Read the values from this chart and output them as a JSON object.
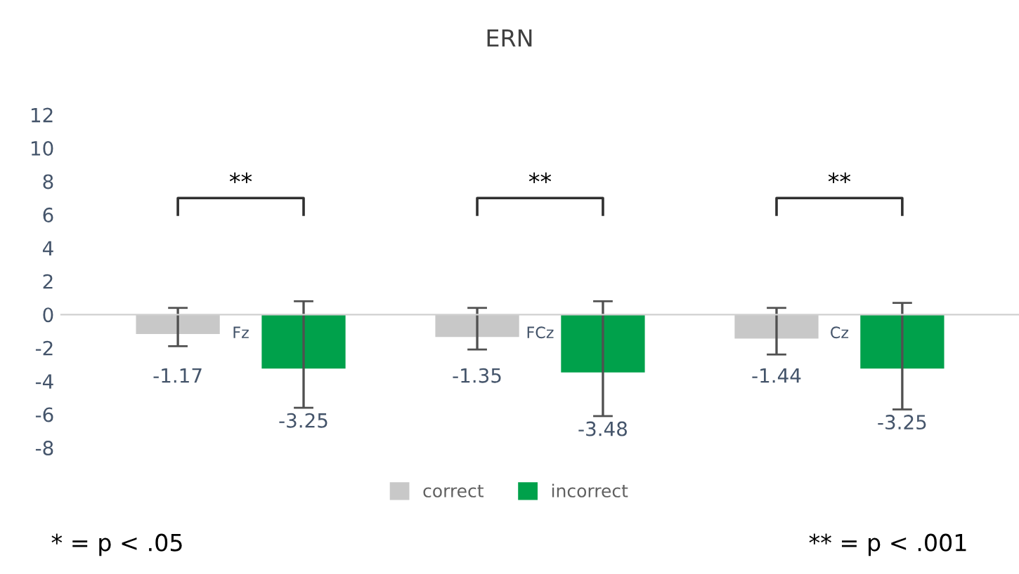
{
  "chart_data": {
    "type": "bar",
    "title": "ERN",
    "categories": [
      "Fz",
      "FCz",
      "Cz"
    ],
    "series": [
      {
        "name": "correct",
        "color": "#c8c8c8",
        "values": [
          -1.17,
          -1.35,
          -1.44
        ],
        "errors": [
          [
            -1.9,
            0.4
          ],
          [
            -2.1,
            0.4
          ],
          [
            -2.4,
            0.4
          ]
        ]
      },
      {
        "name": "incorrect",
        "color": "#00a14b",
        "values": [
          -3.25,
          -3.48,
          -3.25
        ],
        "errors": [
          [
            -5.6,
            0.8
          ],
          [
            -6.1,
            0.8
          ],
          [
            -5.7,
            0.7
          ]
        ]
      }
    ],
    "ylim": [
      -8,
      12
    ],
    "yticks": [
      -8,
      -6,
      -4,
      -2,
      0,
      2,
      4,
      6,
      8,
      10,
      12
    ],
    "grid": false,
    "legend": "bottom",
    "data_labels": true,
    "annotations": [
      "**",
      "**",
      "**",
      "* = p < .05",
      "** = p < .001"
    ]
  }
}
